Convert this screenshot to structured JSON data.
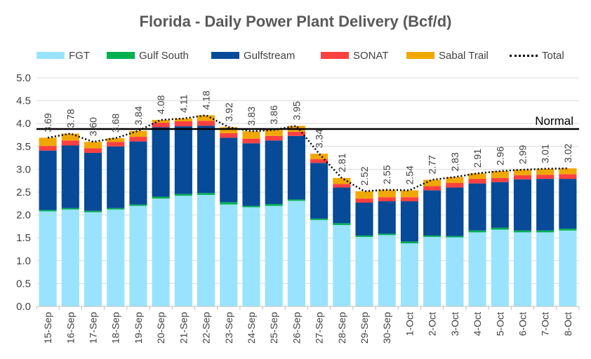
{
  "chart_data": {
    "type": "bar",
    "stacked": true,
    "title": "Florida - Daily Power Plant Delivery (Bcf/d)",
    "xlabel": "",
    "ylabel": "",
    "ylim": [
      0,
      5
    ],
    "yticks": [
      "0.0",
      "0.5",
      "1.0",
      "1.5",
      "2.0",
      "2.5",
      "3.0",
      "3.5",
      "4.0",
      "4.5",
      "5.0"
    ],
    "grid": true,
    "legend_position": "top",
    "categories": [
      "15-Sep",
      "16-Sep",
      "17-Sep",
      "18-Sep",
      "19-Sep",
      "20-Sep",
      "21-Sep",
      "22-Sep",
      "23-Sep",
      "24-Sep",
      "25-Sep",
      "26-Sep",
      "27-Sep",
      "28-Sep",
      "29-Sep",
      "30-Sep",
      "1-Oct",
      "2-Oct",
      "3-Oct",
      "4-Oct",
      "5-Oct",
      "6-Oct",
      "7-Oct",
      "8-Oct"
    ],
    "series": [
      {
        "name": "FGT",
        "color": "#99e3ff",
        "values": [
          2.08,
          2.12,
          2.06,
          2.12,
          2.2,
          2.36,
          2.42,
          2.44,
          2.23,
          2.17,
          2.2,
          2.31,
          1.89,
          1.78,
          1.52,
          1.56,
          1.38,
          1.52,
          1.51,
          1.62,
          1.68,
          1.62,
          1.62,
          1.66
        ]
      },
      {
        "name": "Gulf South",
        "color": "#00b050",
        "values": [
          0.03,
          0.03,
          0.03,
          0.03,
          0.03,
          0.04,
          0.04,
          0.04,
          0.05,
          0.03,
          0.04,
          0.03,
          0.03,
          0.04,
          0.03,
          0.03,
          0.04,
          0.03,
          0.03,
          0.04,
          0.04,
          0.04,
          0.04,
          0.04
        ]
      },
      {
        "name": "Gulfstream",
        "color": "#074a97",
        "values": [
          1.3,
          1.37,
          1.27,
          1.35,
          1.38,
          1.52,
          1.48,
          1.47,
          1.41,
          1.37,
          1.39,
          1.39,
          1.22,
          0.78,
          0.72,
          0.71,
          0.88,
          0.99,
          1.06,
          1.03,
          1.0,
          1.12,
          1.13,
          1.09
        ]
      },
      {
        "name": "SONAT",
        "color": "#ff4040",
        "values": [
          0.1,
          0.11,
          0.1,
          0.1,
          0.1,
          0.1,
          0.11,
          0.11,
          0.1,
          0.1,
          0.1,
          0.09,
          0.08,
          0.08,
          0.09,
          0.09,
          0.09,
          0.09,
          0.1,
          0.1,
          0.09,
          0.09,
          0.09,
          0.1
        ]
      },
      {
        "name": "Sabal Trail",
        "color": "#f0a800",
        "values": [
          0.18,
          0.15,
          0.14,
          0.08,
          0.13,
          0.06,
          0.06,
          0.12,
          0.13,
          0.16,
          0.13,
          0.13,
          0.12,
          0.13,
          0.16,
          0.16,
          0.15,
          0.14,
          0.13,
          0.12,
          0.15,
          0.12,
          0.13,
          0.13
        ]
      }
    ],
    "total": {
      "name": "Total",
      "values": [
        3.69,
        3.78,
        3.6,
        3.68,
        3.84,
        4.08,
        4.11,
        4.18,
        3.92,
        3.83,
        3.86,
        3.95,
        3.34,
        2.81,
        2.52,
        2.55,
        2.54,
        2.77,
        2.83,
        2.91,
        2.96,
        2.99,
        3.01,
        3.02
      ]
    },
    "total_labels": [
      "3.69",
      "3.78",
      "3.60",
      "3.68",
      "3.84",
      "4.08",
      "4.11",
      "4.18",
      "3.92",
      "3.83",
      "3.86",
      "3.95",
      "3.34",
      "2.81",
      "2.52",
      "2.55",
      "2.54",
      "2.77",
      "2.83",
      "2.91",
      "2.96",
      "2.99",
      "3.01",
      "3.02"
    ],
    "reference_line": {
      "label": "Normal",
      "value": 3.88
    }
  }
}
